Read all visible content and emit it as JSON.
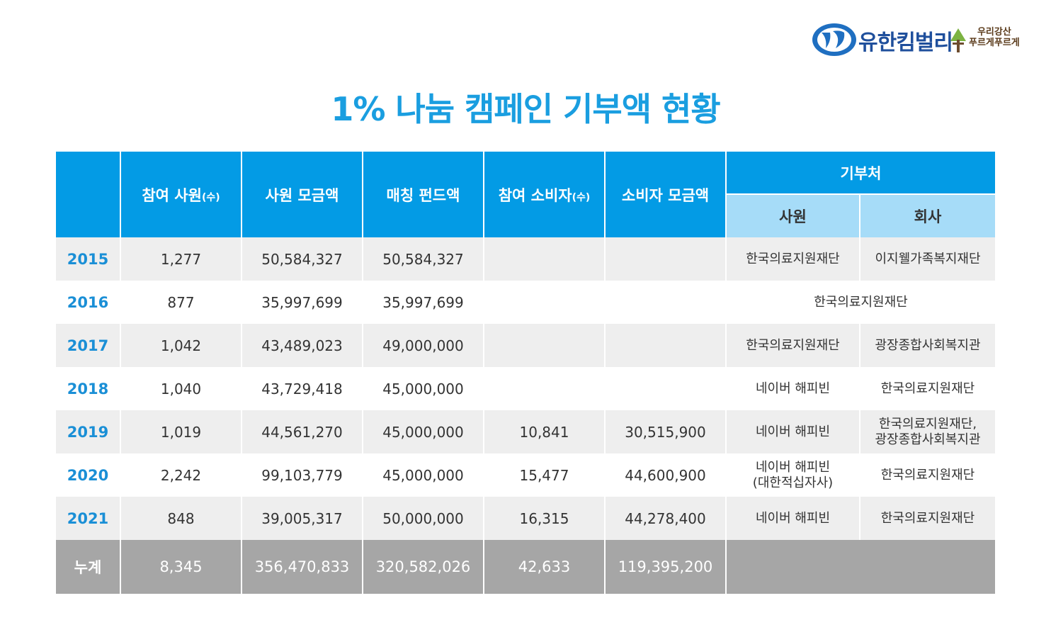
{
  "logo": {
    "name": "유한킴벌리",
    "slogan_line1": "우리강산",
    "slogan_line2": "푸르게푸르게",
    "brand_color": "#1f4f9c"
  },
  "title": "1% 나눔 캠페인 기부액 현황",
  "chart_data": {
    "type": "table",
    "headers": {
      "year": "",
      "employees": "참여 사원",
      "employees_unit": "(수)",
      "employee_fund": "사원 모금액",
      "matching_fund": "매칭 펀드액",
      "consumers": "참여 소비자",
      "consumers_unit": "(수)",
      "consumer_fund": "소비자 모금액",
      "donee": "기부처",
      "donee_employee": "사원",
      "donee_company": "회사"
    },
    "rows": [
      {
        "year": "2015",
        "employees": "1,277",
        "employee_fund": "50,584,327",
        "matching_fund": "50,584,327",
        "consumers": "",
        "consumer_fund": "",
        "donee_employee": "한국의료지원재단",
        "donee_company": "이지웰가족복지재단"
      },
      {
        "year": "2016",
        "employees": "877",
        "employee_fund": "35,997,699",
        "matching_fund": "35,997,699",
        "consumers": "",
        "consumer_fund": "",
        "donee_combined": "한국의료지원재단"
      },
      {
        "year": "2017",
        "employees": "1,042",
        "employee_fund": "43,489,023",
        "matching_fund": "49,000,000",
        "consumers": "",
        "consumer_fund": "",
        "donee_employee": "한국의료지원재단",
        "donee_company": "광장종합사회복지관"
      },
      {
        "year": "2018",
        "employees": "1,040",
        "employee_fund": "43,729,418",
        "matching_fund": "45,000,000",
        "consumers": "",
        "consumer_fund": "",
        "donee_employee": "네이버 해피빈",
        "donee_company": "한국의료지원재단"
      },
      {
        "year": "2019",
        "employees": "1,019",
        "employee_fund": "44,561,270",
        "matching_fund": "45,000,000",
        "consumers": "10,841",
        "consumer_fund": "30,515,900",
        "donee_employee": "네이버 해피빈",
        "donee_company": "한국의료지원재단,",
        "donee_company_line2": "광장종합사회복지관"
      },
      {
        "year": "2020",
        "employees": "2,242",
        "employee_fund": "99,103,779",
        "matching_fund": "45,000,000",
        "consumers": "15,477",
        "consumer_fund": "44,600,900",
        "donee_employee": "네이버 해피빈",
        "donee_employee_line2": "(대한적십자사)",
        "donee_company": "한국의료지원재단"
      },
      {
        "year": "2021",
        "employees": "848",
        "employee_fund": "39,005,317",
        "matching_fund": "50,000,000",
        "consumers": "16,315",
        "consumer_fund": "44,278,400",
        "donee_employee": "네이버 해피빈",
        "donee_company": "한국의료지원재단"
      }
    ],
    "total": {
      "label": "누계",
      "employees": "8,345",
      "employee_fund": "356,470,833",
      "matching_fund": "320,582,026",
      "consumers": "42,633",
      "consumer_fund": "119,395,200"
    }
  },
  "colors": {
    "header": "#039be5",
    "subheader": "#a6dcf8",
    "title": "#1a9ee0",
    "year": "#1a8fd6",
    "total_row": "#a6a6a6",
    "odd_row": "#eeeeee"
  }
}
